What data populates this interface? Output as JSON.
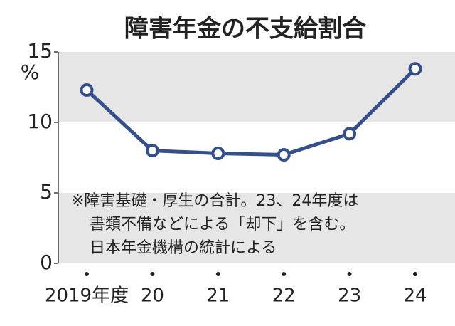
{
  "chart_data": {
    "type": "line",
    "title": "障害年金の不支給割合",
    "y_unit": "%",
    "categories": [
      "2019年度",
      "20",
      "21",
      "22",
      "23",
      "24"
    ],
    "series": [
      {
        "name": "不支給割合",
        "color": "#34508c",
        "values": [
          12.3,
          8.0,
          7.8,
          7.7,
          9.2,
          13.8
        ]
      }
    ],
    "ylim": [
      0,
      15
    ],
    "yticks": [
      0,
      5,
      10,
      15
    ],
    "band_color": "#e6e6e6",
    "annotation": [
      "※障害基礎・厚生の合計。23、24年度は",
      "書類不備などによる「却下」を含む。",
      "日本年金機構の統計による"
    ]
  }
}
